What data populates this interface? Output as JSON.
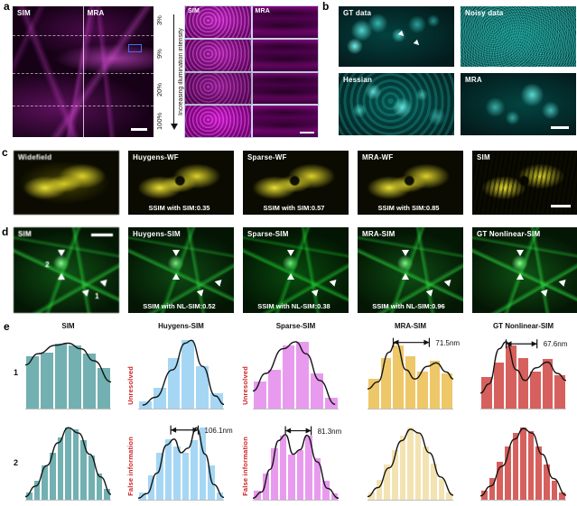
{
  "colors": {
    "magenta_channel": "#d400d4",
    "cyan_channel": "#00d8cf",
    "yellow_channel": "#e8dc20",
    "green_channel": "#2ecc45",
    "bar_teal": "#72b0b1",
    "bar_blue": "#a5d7f4",
    "bar_violet": "#e89bee",
    "bar_gold": "#eec768",
    "bar_pale_gold": "#f4e3b2",
    "bar_red": "#d6605d",
    "warning_label_red": "#cc2222",
    "curve_black": "#141414"
  },
  "icons": {
    "arrowhead": "css-triangle",
    "scale-bar": "css-white-rect",
    "intensity-arrow": "css-line-with-triangle",
    "roi-box": "css-blue-rect"
  },
  "figure": {
    "panel_a": {
      "letter": "a",
      "image_labels": {
        "left": "SIM",
        "right": "MRA"
      },
      "intensity_labels": [
        "3%",
        "9%",
        "20%",
        "100%"
      ],
      "axis_caption": "Increasing illumination intensity",
      "grid_labels": {
        "col1": "SIM",
        "col2": "MRA"
      }
    },
    "panel_b": {
      "letter": "b",
      "cells": [
        {
          "label": "GT data"
        },
        {
          "label": "Noisy data"
        },
        {
          "label": "Hessian"
        },
        {
          "label": "MRA"
        }
      ]
    },
    "panel_c": {
      "letter": "c",
      "cells": [
        {
          "label": "Widefield"
        },
        {
          "label": "Huygens-WF",
          "ssim": "SSIM with SIM:0.35"
        },
        {
          "label": "Sparse-WF",
          "ssim": "SSIM with SIM:0.57"
        },
        {
          "label": "MRA-WF",
          "ssim": "SSIM with SIM:0.85"
        },
        {
          "label": "SIM"
        }
      ]
    },
    "panel_d": {
      "letter": "d",
      "cells": [
        {
          "label": "SIM",
          "marker_1": "1",
          "marker_2": "2"
        },
        {
          "label": "Huygens-SIM",
          "ssim": "SSIM with NL-SIM:0.52"
        },
        {
          "label": "Sparse-SIM",
          "ssim": "SSIM with NL-SIM:0.38"
        },
        {
          "label": "MRA-SIM",
          "ssim": "SSIM with NL-SIM:0.96"
        },
        {
          "label": "GT Nonlinear-SIM"
        }
      ]
    },
    "panel_e": {
      "letter": "e",
      "column_headers": [
        "SIM",
        "Huygens-SIM",
        "Sparse-SIM",
        "MRA-SIM",
        "GT Nonlinear-SIM"
      ],
      "row_labels": [
        "1",
        "2"
      ]
    }
  },
  "chart_data": [
    {
      "type": "bar",
      "row": "1",
      "column": "SIM",
      "bar_color": "#72b0b1",
      "values": [
        0.75,
        0.8,
        0.92,
        0.9,
        0.78,
        0.58
      ],
      "curve": [
        [
          0,
          0.62
        ],
        [
          0.15,
          0.78
        ],
        [
          0.35,
          0.9
        ],
        [
          0.5,
          0.93
        ],
        [
          0.65,
          0.85
        ],
        [
          0.8,
          0.68
        ],
        [
          1,
          0.38
        ]
      ],
      "side_label": null,
      "annotation": null
    },
    {
      "type": "bar",
      "row": "1",
      "column": "Huygens-SIM",
      "bar_color": "#a5d7f4",
      "values": [
        0.1,
        0.3,
        0.72,
        0.97,
        0.6,
        0.22
      ],
      "curve": [
        [
          0.05,
          0.05
        ],
        [
          0.2,
          0.16
        ],
        [
          0.4,
          0.55
        ],
        [
          0.55,
          0.93
        ],
        [
          0.62,
          0.97
        ],
        [
          0.75,
          0.6
        ],
        [
          0.9,
          0.18
        ],
        [
          1,
          0.06
        ]
      ],
      "side_label": "Unresolved",
      "annotation": null
    },
    {
      "type": "bar",
      "row": "1",
      "column": "Sparse-SIM",
      "bar_color": "#e89bee",
      "values": [
        0.38,
        0.55,
        0.9,
        0.95,
        0.5,
        0.16
      ],
      "curve": [
        [
          0,
          0.25
        ],
        [
          0.15,
          0.5
        ],
        [
          0.35,
          0.85
        ],
        [
          0.5,
          0.95
        ],
        [
          0.62,
          0.78
        ],
        [
          0.78,
          0.4
        ],
        [
          0.96,
          0.06
        ]
      ],
      "side_label": "Unresolved",
      "annotation": null
    },
    {
      "type": "bar",
      "row": "1",
      "column": "MRA-SIM",
      "bar_color": "#eec768",
      "values": [
        0.42,
        0.72,
        0.9,
        0.75,
        0.52,
        0.68,
        0.5
      ],
      "curve": [
        [
          0,
          0.28
        ],
        [
          0.12,
          0.38
        ],
        [
          0.25,
          0.8
        ],
        [
          0.33,
          0.95
        ],
        [
          0.45,
          0.55
        ],
        [
          0.55,
          0.42
        ],
        [
          0.7,
          0.6
        ],
        [
          0.8,
          0.65
        ],
        [
          0.92,
          0.52
        ],
        [
          1,
          0.42
        ]
      ],
      "side_label": null,
      "annotation": {
        "label": "71.5nm",
        "x1": 0.3,
        "x2": 0.72,
        "y": 0.06
      }
    },
    {
      "type": "bar",
      "row": "1",
      "column": "GT Nonlinear-SIM",
      "bar_color": "#d6605d",
      "values": [
        0.45,
        0.65,
        0.9,
        0.72,
        0.52,
        0.7,
        0.48
      ],
      "curve": [
        [
          0,
          0.22
        ],
        [
          0.1,
          0.35
        ],
        [
          0.22,
          0.85
        ],
        [
          0.3,
          0.95
        ],
        [
          0.42,
          0.55
        ],
        [
          0.52,
          0.4
        ],
        [
          0.65,
          0.58
        ],
        [
          0.78,
          0.66
        ],
        [
          0.9,
          0.5
        ],
        [
          1,
          0.4
        ]
      ],
      "side_label": null,
      "annotation": {
        "label": "67.6nm",
        "x1": 0.3,
        "x2": 0.66,
        "y": 0.08
      }
    },
    {
      "type": "bar",
      "row": "2",
      "column": "SIM",
      "bar_color": "#72b0b1",
      "values": [
        0.1,
        0.25,
        0.45,
        0.62,
        0.82,
        0.95,
        0.93,
        0.78,
        0.58,
        0.35,
        0.14
      ],
      "curve": [
        [
          0,
          0.04
        ],
        [
          0.12,
          0.18
        ],
        [
          0.25,
          0.45
        ],
        [
          0.38,
          0.75
        ],
        [
          0.5,
          0.95
        ],
        [
          0.62,
          0.88
        ],
        [
          0.75,
          0.6
        ],
        [
          0.88,
          0.3
        ],
        [
          1,
          0.07
        ]
      ],
      "side_label": null,
      "annotation": null
    },
    {
      "type": "bar",
      "row": "2",
      "column": "Huygens-SIM",
      "bar_color": "#a5d7f4",
      "values": [
        0.1,
        0.32,
        0.62,
        0.8,
        0.7,
        0.62,
        0.78,
        0.95,
        0.45,
        0.1
      ],
      "curve": [
        [
          0,
          0.02
        ],
        [
          0.1,
          0.08
        ],
        [
          0.22,
          0.35
        ],
        [
          0.33,
          0.72
        ],
        [
          0.42,
          0.8
        ],
        [
          0.5,
          0.62
        ],
        [
          0.58,
          0.68
        ],
        [
          0.68,
          0.95
        ],
        [
          0.78,
          0.6
        ],
        [
          0.88,
          0.2
        ],
        [
          1,
          0.03
        ]
      ],
      "side_label": "False information",
      "annotation": {
        "label": "106.1nm",
        "x1": 0.38,
        "x2": 0.7,
        "y": 0.08
      }
    },
    {
      "type": "bar",
      "row": "2",
      "column": "Sparse-SIM",
      "bar_color": "#e89bee",
      "values": [
        0.12,
        0.35,
        0.68,
        0.85,
        0.6,
        0.66,
        0.85,
        0.55,
        0.25,
        0.08
      ],
      "curve": [
        [
          0,
          0.02
        ],
        [
          0.1,
          0.1
        ],
        [
          0.2,
          0.4
        ],
        [
          0.3,
          0.78
        ],
        [
          0.38,
          0.86
        ],
        [
          0.47,
          0.6
        ],
        [
          0.55,
          0.66
        ],
        [
          0.63,
          0.85
        ],
        [
          0.75,
          0.5
        ],
        [
          0.87,
          0.15
        ],
        [
          1,
          0.02
        ]
      ],
      "side_label": "False information",
      "annotation": {
        "label": "81.3nm",
        "x1": 0.38,
        "x2": 0.68,
        "y": 0.09
      }
    },
    {
      "type": "bar",
      "row": "2",
      "column": "MRA-SIM",
      "bar_color": "#f4e3b2",
      "values": [
        0.1,
        0.26,
        0.46,
        0.66,
        0.85,
        0.95,
        0.88,
        0.7,
        0.48,
        0.27,
        0.1
      ],
      "curve": [
        [
          0,
          0.04
        ],
        [
          0.12,
          0.16
        ],
        [
          0.25,
          0.42
        ],
        [
          0.4,
          0.78
        ],
        [
          0.5,
          0.93
        ],
        [
          0.6,
          0.88
        ],
        [
          0.72,
          0.62
        ],
        [
          0.85,
          0.3
        ],
        [
          1,
          0.06
        ]
      ],
      "side_label": null,
      "annotation": null
    },
    {
      "type": "bar",
      "row": "2",
      "column": "GT Nonlinear-SIM",
      "bar_color": "#d6605d",
      "values": [
        0.12,
        0.28,
        0.5,
        0.7,
        0.88,
        0.95,
        0.9,
        0.7,
        0.46,
        0.25,
        0.1
      ],
      "curve": [
        [
          0,
          0.05
        ],
        [
          0.12,
          0.18
        ],
        [
          0.25,
          0.44
        ],
        [
          0.4,
          0.8
        ],
        [
          0.5,
          0.94
        ],
        [
          0.6,
          0.88
        ],
        [
          0.72,
          0.6
        ],
        [
          0.85,
          0.28
        ],
        [
          1,
          0.06
        ]
      ],
      "side_label": null,
      "annotation": null
    }
  ]
}
